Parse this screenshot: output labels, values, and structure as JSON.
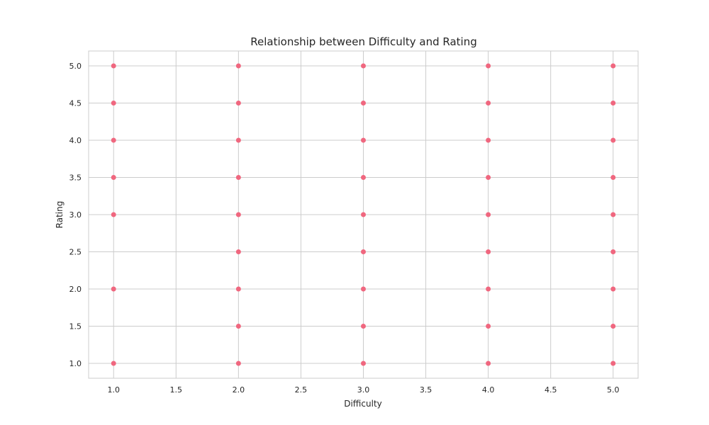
{
  "chart_data": {
    "type": "scatter",
    "title": "Relationship between Difficulty and Rating",
    "xlabel": "Difficulty",
    "ylabel": "Rating",
    "xlim": [
      0.8,
      5.2
    ],
    "ylim": [
      0.8,
      5.2
    ],
    "xticks": [
      1.0,
      1.5,
      2.0,
      2.5,
      3.0,
      3.5,
      4.0,
      4.5,
      5.0
    ],
    "yticks": [
      1.0,
      1.5,
      2.0,
      2.5,
      3.0,
      3.5,
      4.0,
      4.5,
      5.0
    ],
    "xtick_labels": [
      "1.0",
      "1.5",
      "2.0",
      "2.5",
      "3.0",
      "3.5",
      "4.0",
      "4.5",
      "5.0"
    ],
    "ytick_labels": [
      "1.0",
      "1.5",
      "2.0",
      "2.5",
      "3.0",
      "3.5",
      "4.0",
      "4.5",
      "5.0"
    ],
    "grid": true,
    "point_color": "#f0677f",
    "series": [
      {
        "points": [
          {
            "x": 1,
            "y": 1.0
          },
          {
            "x": 1,
            "y": 2.0
          },
          {
            "x": 1,
            "y": 3.0
          },
          {
            "x": 1,
            "y": 3.5
          },
          {
            "x": 1,
            "y": 4.0
          },
          {
            "x": 1,
            "y": 4.5
          },
          {
            "x": 1,
            "y": 5.0
          },
          {
            "x": 2,
            "y": 1.0
          },
          {
            "x": 2,
            "y": 1.5
          },
          {
            "x": 2,
            "y": 2.0
          },
          {
            "x": 2,
            "y": 2.5
          },
          {
            "x": 2,
            "y": 3.0
          },
          {
            "x": 2,
            "y": 3.5
          },
          {
            "x": 2,
            "y": 4.0
          },
          {
            "x": 2,
            "y": 4.5
          },
          {
            "x": 2,
            "y": 5.0
          },
          {
            "x": 3,
            "y": 1.0
          },
          {
            "x": 3,
            "y": 1.5
          },
          {
            "x": 3,
            "y": 2.0
          },
          {
            "x": 3,
            "y": 2.5
          },
          {
            "x": 3,
            "y": 3.0
          },
          {
            "x": 3,
            "y": 3.5
          },
          {
            "x": 3,
            "y": 4.0
          },
          {
            "x": 3,
            "y": 4.5
          },
          {
            "x": 3,
            "y": 5.0
          },
          {
            "x": 4,
            "y": 1.0
          },
          {
            "x": 4,
            "y": 1.5
          },
          {
            "x": 4,
            "y": 2.0
          },
          {
            "x": 4,
            "y": 2.5
          },
          {
            "x": 4,
            "y": 3.0
          },
          {
            "x": 4,
            "y": 3.5
          },
          {
            "x": 4,
            "y": 4.0
          },
          {
            "x": 4,
            "y": 4.5
          },
          {
            "x": 4,
            "y": 5.0
          },
          {
            "x": 5,
            "y": 1.0
          },
          {
            "x": 5,
            "y": 1.5
          },
          {
            "x": 5,
            "y": 2.0
          },
          {
            "x": 5,
            "y": 2.5
          },
          {
            "x": 5,
            "y": 3.0
          },
          {
            "x": 5,
            "y": 3.5
          },
          {
            "x": 5,
            "y": 4.0
          },
          {
            "x": 5,
            "y": 4.5
          },
          {
            "x": 5,
            "y": 5.0
          }
        ]
      }
    ]
  }
}
